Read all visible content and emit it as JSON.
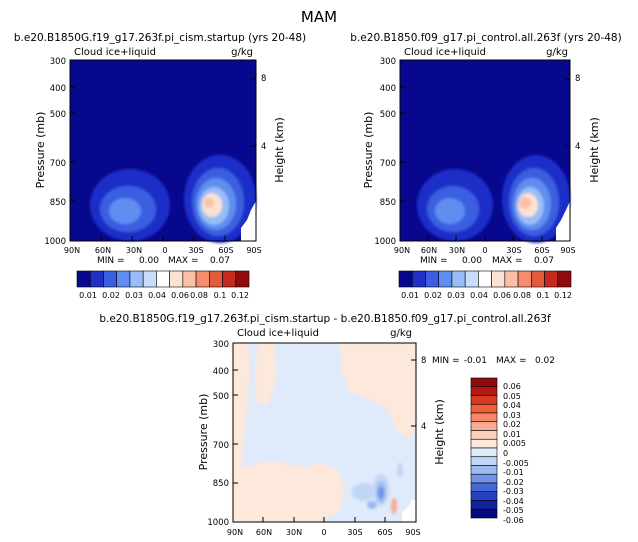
{
  "page_title": "MAM",
  "chart_data": [
    {
      "type": "heatmap",
      "title": "b.e20.B1850G.f19_g17.263f.pi_cism.startup (yrs 20-48)",
      "field_label": "Cloud ice+liquid",
      "units": "g/kg",
      "ylabel": "Pressure (mb)",
      "ylabel_right": "Height (km)",
      "x_ticks": [
        "90N",
        "60N",
        "30N",
        "0",
        "30S",
        "60S",
        "90S"
      ],
      "y_ticks": [
        "300",
        "400",
        "500",
        "700",
        "850",
        "1000"
      ],
      "y_ticks_right": [
        "8",
        "4"
      ],
      "min_label": "MIN =",
      "min_value": "0.00",
      "max_label": "MAX =",
      "max_value": "0.07",
      "colorbar_labels": [
        "0.01",
        "0.02",
        "0.03",
        "0.04",
        "0.06",
        "0.08",
        "0.1",
        "0.12"
      ],
      "colors": [
        "#08088f",
        "#1f2fc8",
        "#3a5fe0",
        "#5f8ef0",
        "#98bdf7",
        "#c9dcfb",
        "#ffffff",
        "#fde2d2",
        "#fbbfa6",
        "#f48c6e",
        "#e35a3c",
        "#c52a1e",
        "#8e0c0c"
      ]
    },
    {
      "type": "heatmap",
      "title": "b.e20.B1850.f09_g17.pi_control.all.263f (yrs 20-48)",
      "field_label": "Cloud ice+liquid",
      "units": "g/kg",
      "ylabel": "Pressure (mb)",
      "ylabel_right": "Height (km)",
      "x_ticks": [
        "90N",
        "60N",
        "30N",
        "0",
        "30S",
        "60S",
        "90S"
      ],
      "y_ticks": [
        "300",
        "400",
        "500",
        "700",
        "850",
        "1000"
      ],
      "y_ticks_right": [
        "8",
        "4"
      ],
      "min_label": "MIN =",
      "min_value": "0.00",
      "max_label": "MAX =",
      "max_value": "0.07",
      "colorbar_labels": [
        "0.01",
        "0.02",
        "0.03",
        "0.04",
        "0.06",
        "0.08",
        "0.1",
        "0.12"
      ]
    },
    {
      "type": "heatmap",
      "title": "b.e20.B1850G.f19_g17.263f.pi_cism.startup - b.e20.B1850.f09_g17.pi_control.all.263f",
      "field_label": "Cloud ice+liquid",
      "units": "g/kg",
      "ylabel": "Pressure (mb)",
      "ylabel_right": "Height (km)",
      "x_ticks": [
        "90N",
        "60N",
        "30N",
        "0",
        "30S",
        "60S",
        "90S"
      ],
      "y_ticks": [
        "300",
        "400",
        "500",
        "700",
        "850",
        "1000"
      ],
      "y_ticks_right": [
        "8",
        "4"
      ],
      "min_label": "MIN =",
      "min_value": "-0.01",
      "max_label": "MAX =",
      "max_value": "0.02",
      "colorbar_labels": [
        "0.06",
        "0.05",
        "0.04",
        "0.03",
        "0.02",
        "0.01",
        "0.005",
        "0",
        "-0.005",
        "-0.01",
        "-0.02",
        "-0.03",
        "-0.04",
        "-0.05",
        "-0.06"
      ],
      "colors": [
        "#8e0c0c",
        "#b51a12",
        "#d73a1e",
        "#ef5f3a",
        "#f7876a",
        "#fbab91",
        "#fdd2bd",
        "#fde8dc",
        "#dfeafa",
        "#c2d6f6",
        "#9cbaf0",
        "#6f93e6",
        "#4468d8",
        "#2441c2",
        "#10229e",
        "#07087a"
      ]
    }
  ]
}
